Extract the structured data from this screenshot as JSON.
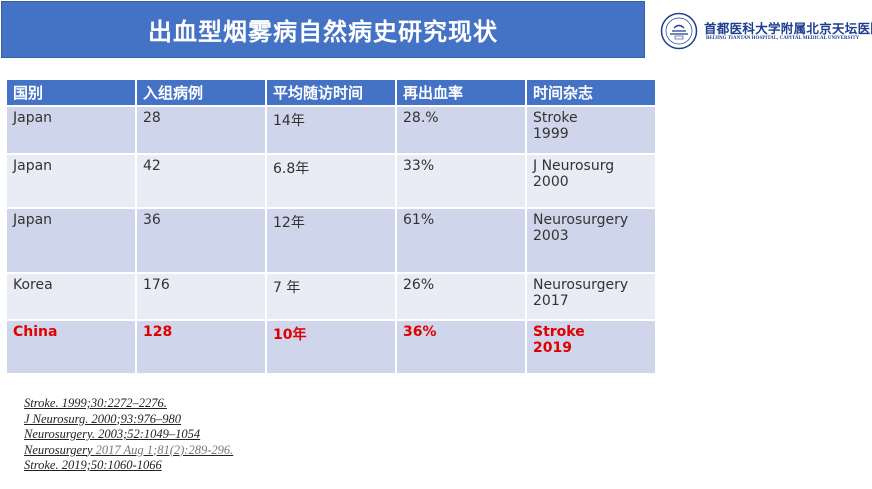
{
  "title": "出血型烟雾病自然病史研究现状",
  "logo": {
    "name_cn": "首都医科大学附属北京天坛医院",
    "name_en": "BEIJING TIANTAN HOSPITAL, CAPITAL MEDICAL UNIVERSITY"
  },
  "table": {
    "headers": [
      "国别",
      "入组病例",
      "平均随访时间",
      "再出血率",
      "时间杂志"
    ],
    "rows": [
      {
        "country": "Japan",
        "cases": "28",
        "followup": "14年",
        "rebleed": "28.%",
        "journal": "Stroke",
        "year": "1999"
      },
      {
        "country": "Japan",
        "cases": "42",
        "followup": "6.8年",
        "rebleed": "33%",
        "journal": "J Neurosurg",
        "year": "2000"
      },
      {
        "country": "Japan",
        "cases": "36",
        "followup": "12年",
        "rebleed": "61%",
        "journal": "Neurosurgery",
        "year": "2003"
      },
      {
        "country": "Korea",
        "cases": "176",
        "followup": "7 年",
        "rebleed": "26%",
        "journal": "Neurosurgery",
        "year": "2017"
      },
      {
        "country": "China",
        "cases": "128",
        "followup": "10年",
        "rebleed": "36%",
        "journal": "Stroke",
        "year": "2019"
      }
    ],
    "highlight_color": "#e00000",
    "header_color": "#4472c4"
  },
  "references": [
    {
      "main": "Stroke. 1999;30:2272–2276.",
      "extra": ""
    },
    {
      "main": "J Neurosurg. 2000;93:976–980",
      "extra": ""
    },
    {
      "main": "Neurosurgery. 2003;52:1049–1054",
      "extra": ""
    },
    {
      "main": "Neurosurgery ",
      "extra": " 2017 Aug 1;81(2):289-296."
    },
    {
      "main": "Stroke. 2019;50:1060-1066",
      "extra": ""
    }
  ]
}
